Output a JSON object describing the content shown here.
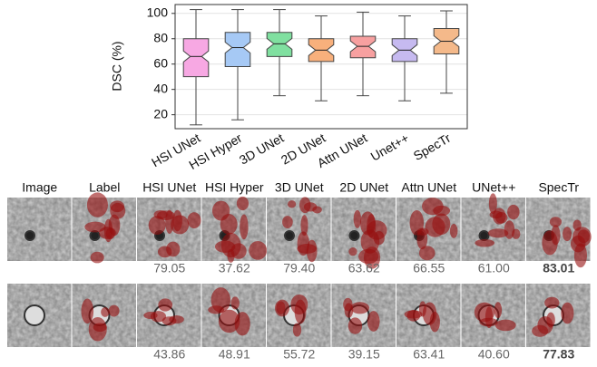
{
  "chart_data": {
    "type": "box",
    "y_label": "DSC (%)",
    "ylim": [
      9,
      107
    ],
    "yticks": [
      20,
      40,
      60,
      80,
      100
    ],
    "grid": true,
    "categories": [
      "HSI UNet",
      "HSI Hyper",
      "3D UNet",
      "2D UNet",
      "Attn UNet",
      "Unet++",
      "SpecTr"
    ],
    "boxes": [
      {
        "color": "#f7a8e3",
        "min": 12,
        "q1": 50,
        "median": 66,
        "q3": 80,
        "max": 103
      },
      {
        "color": "#a6c9f5",
        "min": 16,
        "q1": 58,
        "median": 73,
        "q3": 85,
        "max": 103
      },
      {
        "color": "#80e0a0",
        "min": 35,
        "q1": 66,
        "median": 76,
        "q3": 85,
        "max": 103
      },
      {
        "color": "#f8b07c",
        "min": 31,
        "q1": 62,
        "median": 71,
        "q3": 80,
        "max": 98
      },
      {
        "color": "#f7a0a0",
        "min": 35,
        "q1": 65,
        "median": 74,
        "q3": 82,
        "max": 101
      },
      {
        "color": "#c6baf0",
        "min": 31,
        "q1": 62,
        "median": 71,
        "q3": 80,
        "max": 98
      },
      {
        "color": "#f4b98a",
        "min": 37,
        "q1": 68,
        "median": 78,
        "q3": 88,
        "max": 102
      }
    ]
  },
  "grid_figure": {
    "headers": [
      "Image",
      "Label",
      "HSI UNet",
      "HSI Hyper",
      "3D UNet",
      "2D UNet",
      "Attn UNet",
      "UNet++",
      "SpecTr"
    ],
    "rows": [
      {
        "scores": [
          "79.05",
          "37.62",
          "79.40",
          "63.62",
          "66.55",
          "61.00",
          "83.01"
        ]
      },
      {
        "scores": [
          "43.86",
          "48.91",
          "55.72",
          "39.15",
          "63.41",
          "40.60",
          "77.83"
        ]
      }
    ]
  }
}
